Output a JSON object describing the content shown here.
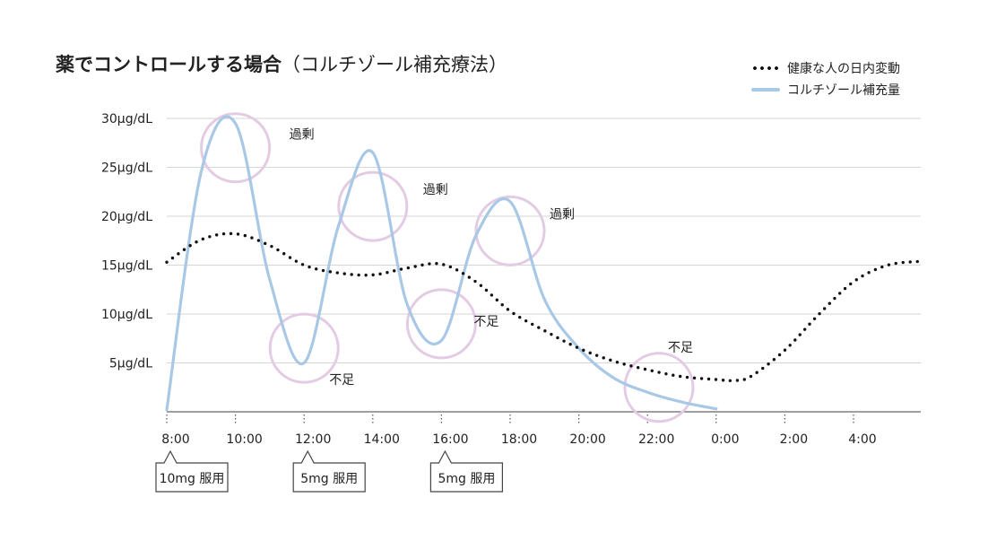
{
  "title": {
    "main": "薬でコントロールする場合",
    "sub": "（コルチゾール補充療法）"
  },
  "legend": {
    "normal": "健康な人の日内変動",
    "treatment": "コルチゾール補充量"
  },
  "colors": {
    "normal": "#111111",
    "treatment": "#a8c8e6",
    "highlight": "#e3cbe3",
    "grid": "#d6d6d6",
    "axis": "#666666"
  },
  "chart_data": {
    "type": "line",
    "title": "薬でコントロールする場合（コルチゾール補充療法）",
    "ylim": [
      0,
      30
    ],
    "yticks": [
      5,
      10,
      15,
      20,
      25,
      30
    ],
    "ytick_labels": [
      "5μg/dL",
      "10μg/dL",
      "15μg/dL",
      "20μg/dL",
      "25μg/dL",
      "30μg/dL"
    ],
    "x_axis": "time of day (8:00 → next day 6:00)",
    "xtick_labels": [
      "8:00",
      "10:00",
      "12:00",
      "14:00",
      "16:00",
      "18:00",
      "20:00",
      "22:00",
      "0:00",
      "2:00",
      "4:00"
    ],
    "grid": "horizontal",
    "legend_position": "top-right",
    "series": [
      {
        "name": "健康な人の日内変動",
        "style": "dotted",
        "points": [
          {
            "x": "8:00",
            "y": 15.3
          },
          {
            "x": "9:00",
            "y": 17.6
          },
          {
            "x": "10:00",
            "y": 18.2
          },
          {
            "x": "11:00",
            "y": 17.0
          },
          {
            "x": "12:00",
            "y": 15.0
          },
          {
            "x": "13:00",
            "y": 14.2
          },
          {
            "x": "14:00",
            "y": 14.0
          },
          {
            "x": "15:00",
            "y": 14.7
          },
          {
            "x": "16:00",
            "y": 15.1
          },
          {
            "x": "17:00",
            "y": 13.3
          },
          {
            "x": "18:00",
            "y": 10.3
          },
          {
            "x": "19:00",
            "y": 8.3
          },
          {
            "x": "20:00",
            "y": 6.5
          },
          {
            "x": "21:00",
            "y": 5.2
          },
          {
            "x": "22:00",
            "y": 4.3
          },
          {
            "x": "23:00",
            "y": 3.6
          },
          {
            "x": "0:00",
            "y": 3.3
          },
          {
            "x": "0:30",
            "y": 3.2
          },
          {
            "x": "1:00",
            "y": 3.6
          },
          {
            "x": "2:00",
            "y": 6.3
          },
          {
            "x": "3:00",
            "y": 10.0
          },
          {
            "x": "4:00",
            "y": 13.3
          },
          {
            "x": "5:00",
            "y": 15.0
          },
          {
            "x": "6:00",
            "y": 15.4
          }
        ]
      },
      {
        "name": "コルチゾール補充量",
        "style": "solid",
        "points": [
          {
            "x": "8:00",
            "y": 0.2
          },
          {
            "x": "9:00",
            "y": 24.5
          },
          {
            "x": "10:00",
            "y": 29.5
          },
          {
            "x": "11:00",
            "y": 13.5
          },
          {
            "x": "12:00",
            "y": 5.0
          },
          {
            "x": "13:00",
            "y": 19.0
          },
          {
            "x": "14:00",
            "y": 26.5
          },
          {
            "x": "15:00",
            "y": 11.0
          },
          {
            "x": "16:00",
            "y": 7.3
          },
          {
            "x": "17:00",
            "y": 18.0
          },
          {
            "x": "18:00",
            "y": 21.5
          },
          {
            "x": "19:00",
            "y": 11.5
          },
          {
            "x": "20:00",
            "y": 6.5
          },
          {
            "x": "21:00",
            "y": 3.5
          },
          {
            "x": "22:00",
            "y": 2.0
          },
          {
            "x": "23:00",
            "y": 1.0
          },
          {
            "x": "0:00",
            "y": 0.3
          }
        ]
      }
    ],
    "annotations": [
      {
        "text": "過剰",
        "x": "10:00",
        "y": 27
      },
      {
        "text": "不足",
        "x": "12:00",
        "y": 6.5
      },
      {
        "text": "過剰",
        "x": "14:00",
        "y": 21
      },
      {
        "text": "不足",
        "x": "16:00",
        "y": 9
      },
      {
        "text": "過剰",
        "x": "18:00",
        "y": 18.5
      },
      {
        "text": "不足",
        "x": "22:20",
        "y": 2.5
      }
    ],
    "doses": [
      {
        "label": "10mg 服用",
        "x": "8:00"
      },
      {
        "label": "5mg 服用",
        "x": "12:00"
      },
      {
        "label": "5mg 服用",
        "x": "16:00"
      }
    ]
  }
}
